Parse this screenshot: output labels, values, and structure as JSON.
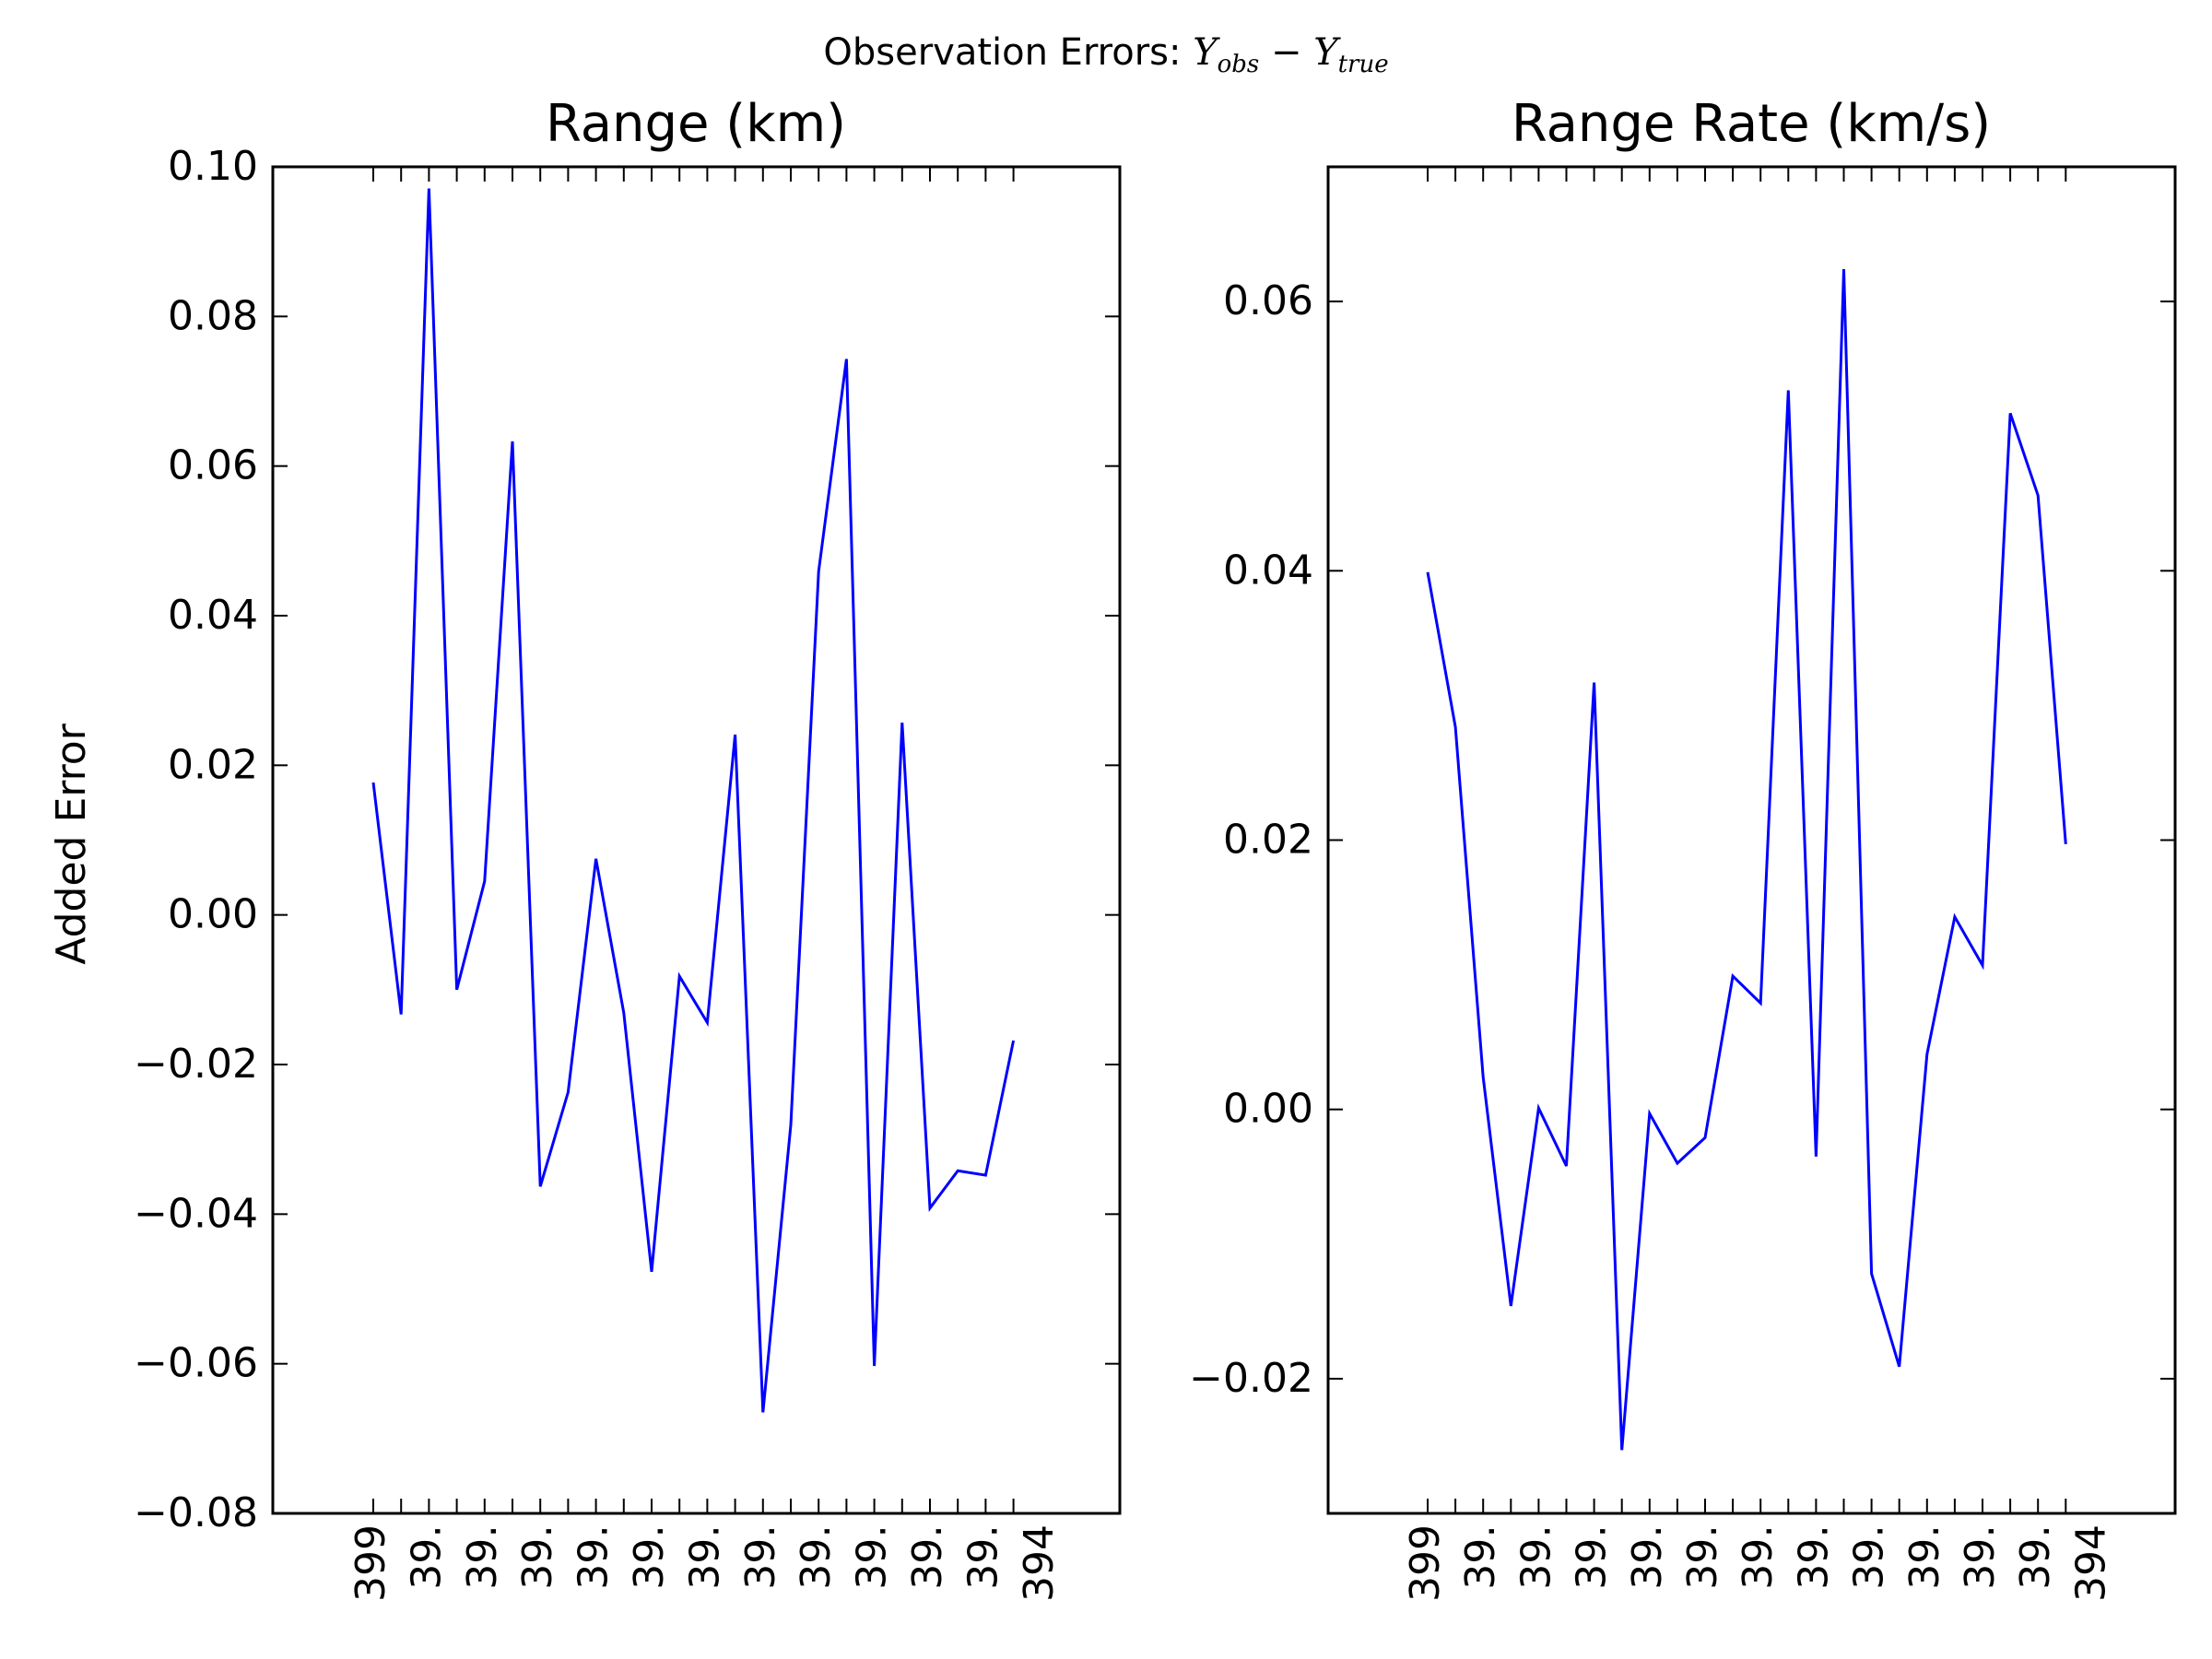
{
  "figure": {
    "suptitle_prefix": "Observation Errors: ",
    "suptitle_math_a": "Y",
    "suptitle_math_a_sub": "obs",
    "suptitle_math_minus": " − ",
    "suptitle_math_b": "Y",
    "suptitle_math_b_sub": "true"
  },
  "chart_data": [
    {
      "type": "line",
      "title": "Range (km)",
      "ylabel": "Added Error",
      "xlabel": "",
      "ylim": [
        -0.08,
        0.1
      ],
      "yticks": [
        -0.08,
        -0.06,
        -0.04,
        -0.02,
        0.0,
        0.02,
        0.04,
        0.06,
        0.08,
        0.1
      ],
      "ytick_labels": [
        "−0.08",
        "−0.06",
        "−0.04",
        "−0.02",
        "0.00",
        "0.02",
        "0.04",
        "0.06",
        "0.08",
        "0.10"
      ],
      "x_tick_labels": [
        "399",
        "39․",
        "39․",
        "39․",
        "39․",
        "39․",
        "39․",
        "39․",
        "39․",
        "39․",
        "39․",
        "39․",
        "394"
      ],
      "line_color": "#0000ff",
      "series": [
        {
          "values": [
            0.0177,
            -0.0133,
            0.0971,
            -0.01,
            0.0045,
            0.0633,
            -0.0363,
            -0.0237,
            0.0075,
            -0.0131,
            -0.0477,
            -0.0082,
            -0.0144,
            0.0241,
            -0.0665,
            -0.0281,
            0.0459,
            0.0743,
            -0.0603,
            0.0257,
            -0.0392,
            -0.0342,
            -0.0348,
            -0.0168
          ]
        }
      ]
    },
    {
      "type": "line",
      "title": "Range Rate (km/s)",
      "ylabel": "",
      "xlabel": "",
      "ylim": [
        -0.03,
        0.07
      ],
      "yticks": [
        -0.02,
        0.0,
        0.02,
        0.04,
        0.06
      ],
      "ytick_labels": [
        "−0.02",
        "0.00",
        "0.02",
        "0.04",
        "0.06"
      ],
      "x_tick_labels": [
        "399",
        "39․",
        "39․",
        "39․",
        "39․",
        "39․",
        "39․",
        "39․",
        "39․",
        "39․",
        "39․",
        "39․",
        "394"
      ],
      "line_color": "#0000ff",
      "series": [
        {
          "values": [
            0.0399,
            0.0284,
            0.0024,
            -0.0146,
            0.0001,
            -0.0042,
            0.0317,
            -0.0253,
            -0.0003,
            -0.004,
            -0.0021,
            0.0099,
            0.0079,
            0.0534,
            -0.0035,
            0.0624,
            -0.0122,
            -0.0191,
            0.0041,
            0.0143,
            0.0107,
            0.0517,
            0.0456,
            0.0197
          ]
        }
      ]
    }
  ]
}
